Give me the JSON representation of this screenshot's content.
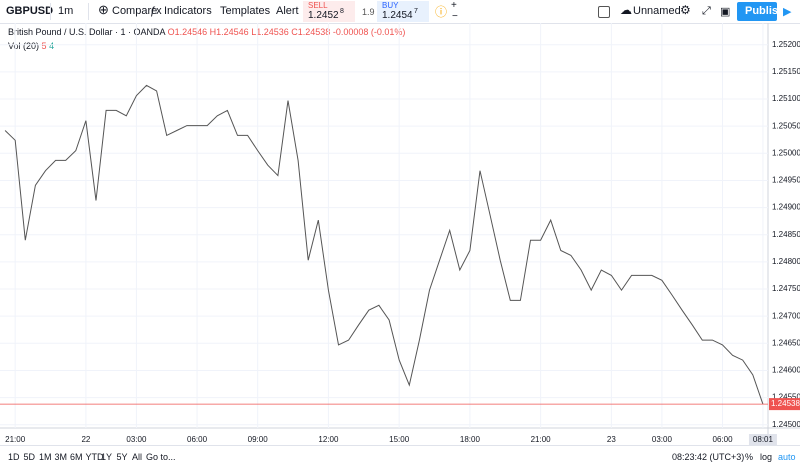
{
  "toolbar": {
    "symbol": "GBPUSD",
    "interval": "1m",
    "compare": "Compare",
    "indicators": "Indicators",
    "templates": "Templates",
    "alert": "Alert",
    "sell_label": "SELL",
    "sell_price": "1.2452",
    "sell_pip": "8",
    "spread": "1.9",
    "buy_label": "BUY",
    "buy_price": "1.2454",
    "buy_pip": "7",
    "layout_name": "Unnamed",
    "publish": "Publish"
  },
  "legend": {
    "instrument": "British Pound / U.S. Dollar · 1 · OANDA",
    "open": "O1.24546",
    "high": "H1.24546",
    "low": "L1.24536",
    "close": "C1.24538",
    "change": "-0.00008 (-0.01%)",
    "volume": "Vol (20)",
    "vol_a": "5",
    "vol_b": "4"
  },
  "chart_data": {
    "type": "line",
    "color": "#555555",
    "last_price_color": "#ef5350",
    "categories": [
      null,
      "21:00",
      null,
      null,
      null,
      null,
      null,
      null,
      "22",
      null,
      null,
      null,
      null,
      "03:00",
      null,
      null,
      null,
      null,
      null,
      "06:00",
      null,
      null,
      null,
      null,
      null,
      "09:00",
      null,
      null,
      null,
      null,
      null,
      null,
      "12:00",
      null,
      null,
      null,
      null,
      null,
      null,
      "15:00",
      null,
      null,
      null,
      null,
      null,
      null,
      "18:00",
      null,
      null,
      null,
      null,
      null,
      null,
      "21:00",
      null,
      null,
      null,
      null,
      null,
      null,
      "23",
      null,
      null,
      null,
      null,
      "03:00",
      null,
      null,
      null,
      null,
      null,
      "06:00",
      null,
      null,
      null,
      "08:01"
    ],
    "values": [
      1.25042,
      1.25024,
      1.2484,
      1.24941,
      1.24968,
      1.24987,
      1.24987,
      1.25005,
      1.2506,
      1.24913,
      1.25079,
      1.25079,
      1.25069,
      1.25106,
      1.25125,
      1.25115,
      1.25033,
      1.25042,
      1.25051,
      1.25051,
      1.25051,
      1.25069,
      1.25079,
      1.25033,
      1.25033,
      1.25005,
      1.24978,
      1.24959,
      1.25097,
      1.24987,
      1.24803,
      1.24877,
      1.24748,
      1.24647,
      1.24656,
      1.24684,
      1.24711,
      1.2472,
      1.24693,
      1.24619,
      1.24573,
      1.24656,
      1.24748,
      1.24803,
      1.24858,
      1.24785,
      1.24821,
      1.24968,
      1.24886,
      1.24803,
      1.24729,
      1.24729,
      1.2484,
      1.2484,
      1.24877,
      1.24821,
      1.24812,
      1.24785,
      1.24748,
      1.24785,
      1.24775,
      1.24748,
      1.24775,
      1.24775,
      1.24775,
      1.24766,
      1.24739,
      1.24711,
      1.24684,
      1.24656,
      1.24656,
      1.24647,
      1.24628,
      1.24619,
      1.24592,
      1.24538
    ],
    "ylim": [
      1.24494,
      1.2524
    ],
    "yticks": [
      {
        "value": 1.245,
        "label": "1.24500"
      },
      {
        "value": 1.2455,
        "label": "1.24550"
      },
      {
        "value": 1.246,
        "label": "1.24600"
      },
      {
        "value": 1.2465,
        "label": "1.24650"
      },
      {
        "value": 1.247,
        "label": "1.24700"
      },
      {
        "value": 1.2475,
        "label": "1.24750"
      },
      {
        "value": 1.248,
        "label": "1.24800"
      },
      {
        "value": 1.2485,
        "label": "1.24850"
      },
      {
        "value": 1.249,
        "label": "1.24900"
      },
      {
        "value": 1.2495,
        "label": "1.24950"
      },
      {
        "value": 1.25,
        "label": "1.25000"
      },
      {
        "value": 1.2505,
        "label": "1.25050"
      },
      {
        "value": 1.251,
        "label": "1.25100"
      },
      {
        "value": 1.2515,
        "label": "1.25150"
      },
      {
        "value": 1.252,
        "label": "1.25200"
      }
    ],
    "grid": true
  },
  "bottom_bar": {
    "ranges": [
      "1D",
      "5D",
      "1M",
      "3M",
      "6M",
      "YTD",
      "1Y",
      "5Y",
      "All"
    ],
    "goto": "Go to...",
    "clock": "08:23:42 (UTC+3)",
    "percent": "%",
    "log": "log",
    "auto": "auto"
  }
}
